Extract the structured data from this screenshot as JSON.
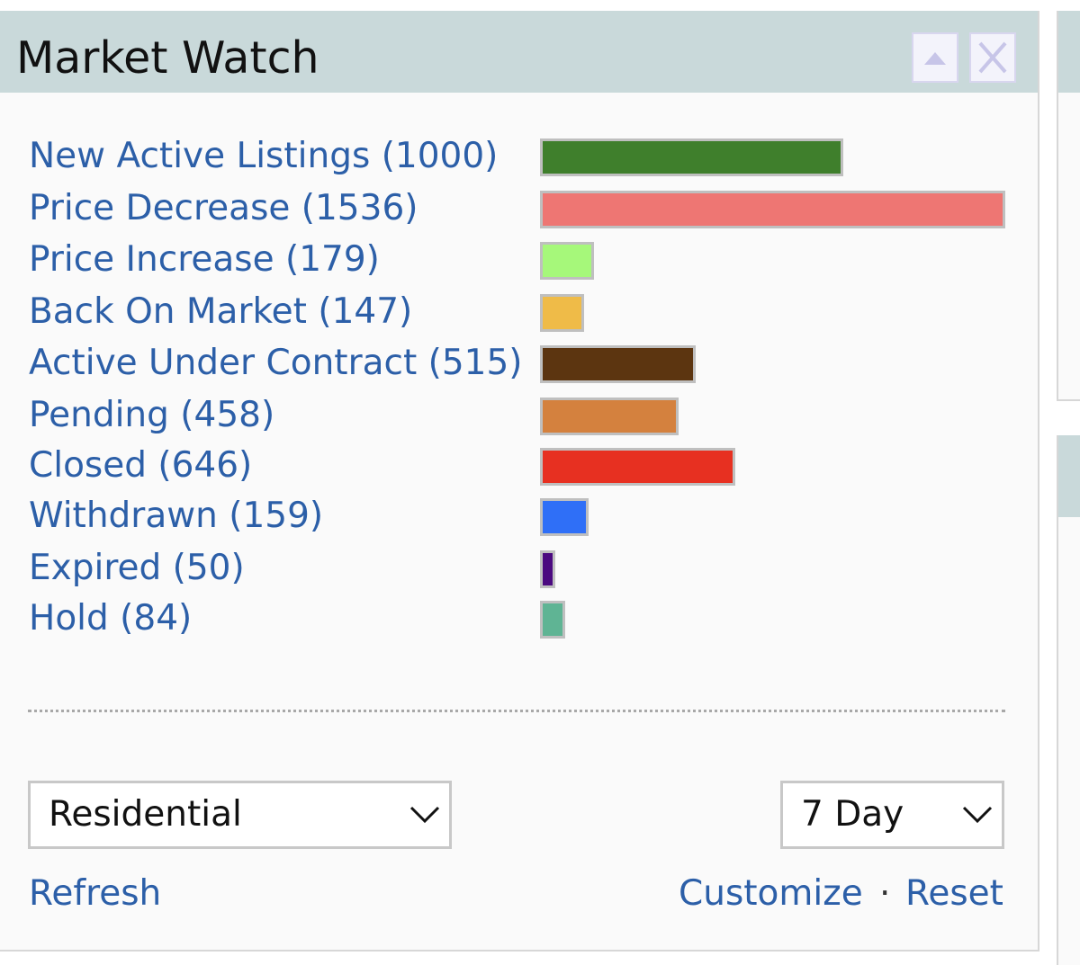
{
  "widget": {
    "title": "Market Watch",
    "header_buttons": [
      {
        "icon": "collapse-up-icon"
      },
      {
        "icon": "close-icon"
      }
    ]
  },
  "market_stats": {
    "items": [
      {
        "label": "New Active Listings (1000)",
        "count": 1000,
        "color": "#3f7f2c"
      },
      {
        "label": "Price Decrease (1536)",
        "count": 1536,
        "color": "#ee7673"
      },
      {
        "label": "Price Increase (179)",
        "count": 179,
        "color": "#a6f87a"
      },
      {
        "label": "Back On Market (147)",
        "count": 147,
        "color": "#efbb48"
      },
      {
        "label": "Active Under Contract (515)",
        "count": 515,
        "color": "#5c3510"
      },
      {
        "label": "Pending (458)",
        "count": 458,
        "color": "#d4813e"
      },
      {
        "label": "Closed (646)",
        "count": 646,
        "color": "#e73021"
      },
      {
        "label": "Withdrawn (159)",
        "count": 159,
        "color": "#2f6ff7"
      },
      {
        "label": "Expired (50)",
        "count": 50,
        "color": "#4b0a80"
      },
      {
        "label": "Hold (84)",
        "count": 84,
        "color": "#5fb494"
      }
    ]
  },
  "controls": {
    "property_type": {
      "selected": "Residential"
    },
    "period": {
      "selected": "7 Day"
    }
  },
  "footer": {
    "refresh_label": "Refresh",
    "customize_label": "Customize",
    "separator": "·",
    "reset_label": "Reset"
  }
}
